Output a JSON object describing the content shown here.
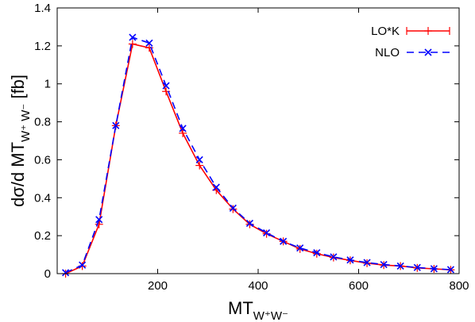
{
  "chart_data": {
    "type": "line",
    "xlabel": {
      "base": "MT",
      "sub": "W⁺W⁻"
    },
    "ylabel": {
      "prefix": "dσ/d MT",
      "sub": "W⁺ W⁻",
      "suffix": " [fb]"
    },
    "xlim": [
      0,
      800
    ],
    "ylim": [
      0,
      1.4
    ],
    "xticks": [
      200,
      400,
      600,
      800
    ],
    "yticks": [
      0,
      0.2,
      0.4,
      0.6,
      0.8,
      1,
      1.2,
      1.4
    ],
    "ytick_labels": [
      "0",
      "0.2",
      "0.4",
      "0.6",
      "0.8",
      "1",
      "1.2",
      "1.4"
    ],
    "grid": false,
    "legend_position": "top-right",
    "series": [
      {
        "name": "LO*K",
        "color": "#ff0000",
        "line": "solid",
        "marker": "errorbar-plus",
        "x": [
          16.7,
          50,
          83.3,
          116.7,
          150,
          183.3,
          216.7,
          250,
          283.3,
          316.7,
          350,
          383.3,
          416.7,
          450,
          483.3,
          516.7,
          550,
          583.3,
          616.7,
          650,
          683.3,
          716.7,
          750,
          783.3
        ],
        "y": [
          0.0,
          0.04,
          0.26,
          0.78,
          1.21,
          1.19,
          0.96,
          0.74,
          0.57,
          0.44,
          0.34,
          0.26,
          0.21,
          0.17,
          0.13,
          0.105,
          0.085,
          0.07,
          0.055,
          0.045,
          0.04,
          0.03,
          0.025,
          0.02
        ]
      },
      {
        "name": "NLO",
        "color": "#0000ff",
        "line": "dashed",
        "marker": "x",
        "x": [
          16.7,
          50,
          83.3,
          116.7,
          150,
          183.3,
          216.7,
          250,
          283.3,
          316.7,
          350,
          383.3,
          416.7,
          450,
          483.3,
          516.7,
          550,
          583.3,
          616.7,
          650,
          683.3,
          716.7,
          750,
          783.3
        ],
        "y": [
          0.005,
          0.045,
          0.285,
          0.78,
          1.245,
          1.215,
          0.99,
          0.765,
          0.6,
          0.455,
          0.345,
          0.265,
          0.215,
          0.17,
          0.135,
          0.11,
          0.088,
          0.072,
          0.058,
          0.048,
          0.04,
          0.032,
          0.026,
          0.021
        ]
      }
    ]
  }
}
